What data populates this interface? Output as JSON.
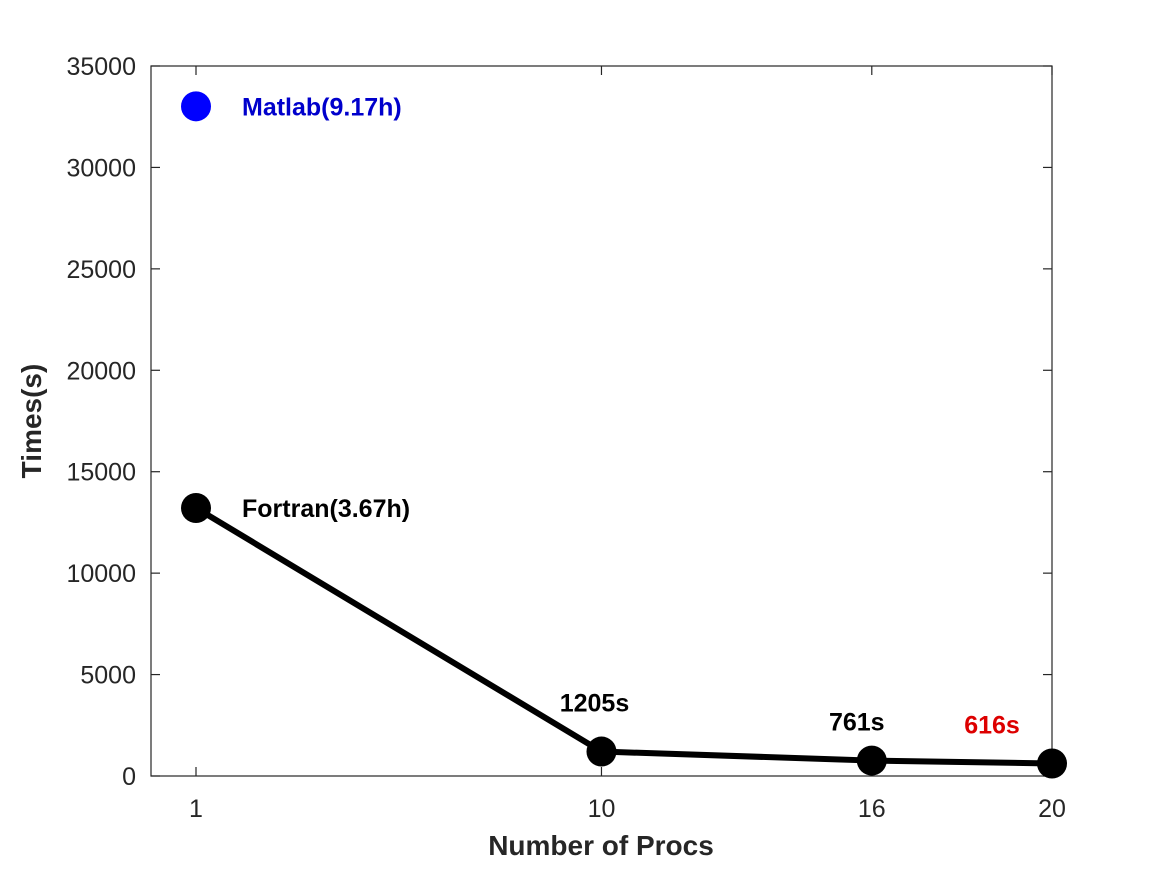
{
  "chart_data": {
    "type": "line",
    "xlabel": "Number of Procs",
    "ylabel": "Times(s)",
    "x_ticks": [
      1,
      10,
      16,
      20
    ],
    "y_ticks": [
      0,
      5000,
      10000,
      15000,
      20000,
      25000,
      30000,
      35000
    ],
    "xlim": [
      0,
      20
    ],
    "ylim": [
      0,
      35000
    ],
    "grid": false,
    "series": [
      {
        "color": "#000000",
        "x": [
          1,
          10,
          16,
          20
        ],
        "y": [
          13212,
          1205,
          761,
          616
        ],
        "marker": "circle",
        "line": true
      },
      {
        "color": "#0000ff",
        "x": [
          1
        ],
        "y": [
          33012
        ],
        "marker": "circle",
        "line": false
      }
    ],
    "annotations": [
      {
        "text": "Matlab(9.17h)",
        "x": 1,
        "y": 33012,
        "color": "#0000cc"
      },
      {
        "text": "Fortran(3.67h)",
        "x": 1,
        "y": 13212,
        "color": "#000000"
      },
      {
        "text": "1205s",
        "x": 10,
        "y": 1205,
        "color": "#000000"
      },
      {
        "text": "761s",
        "x": 16,
        "y": 761,
        "color": "#000000"
      },
      {
        "text": "616s",
        "x": 20,
        "y": 616,
        "color": "#dd0000"
      }
    ]
  }
}
